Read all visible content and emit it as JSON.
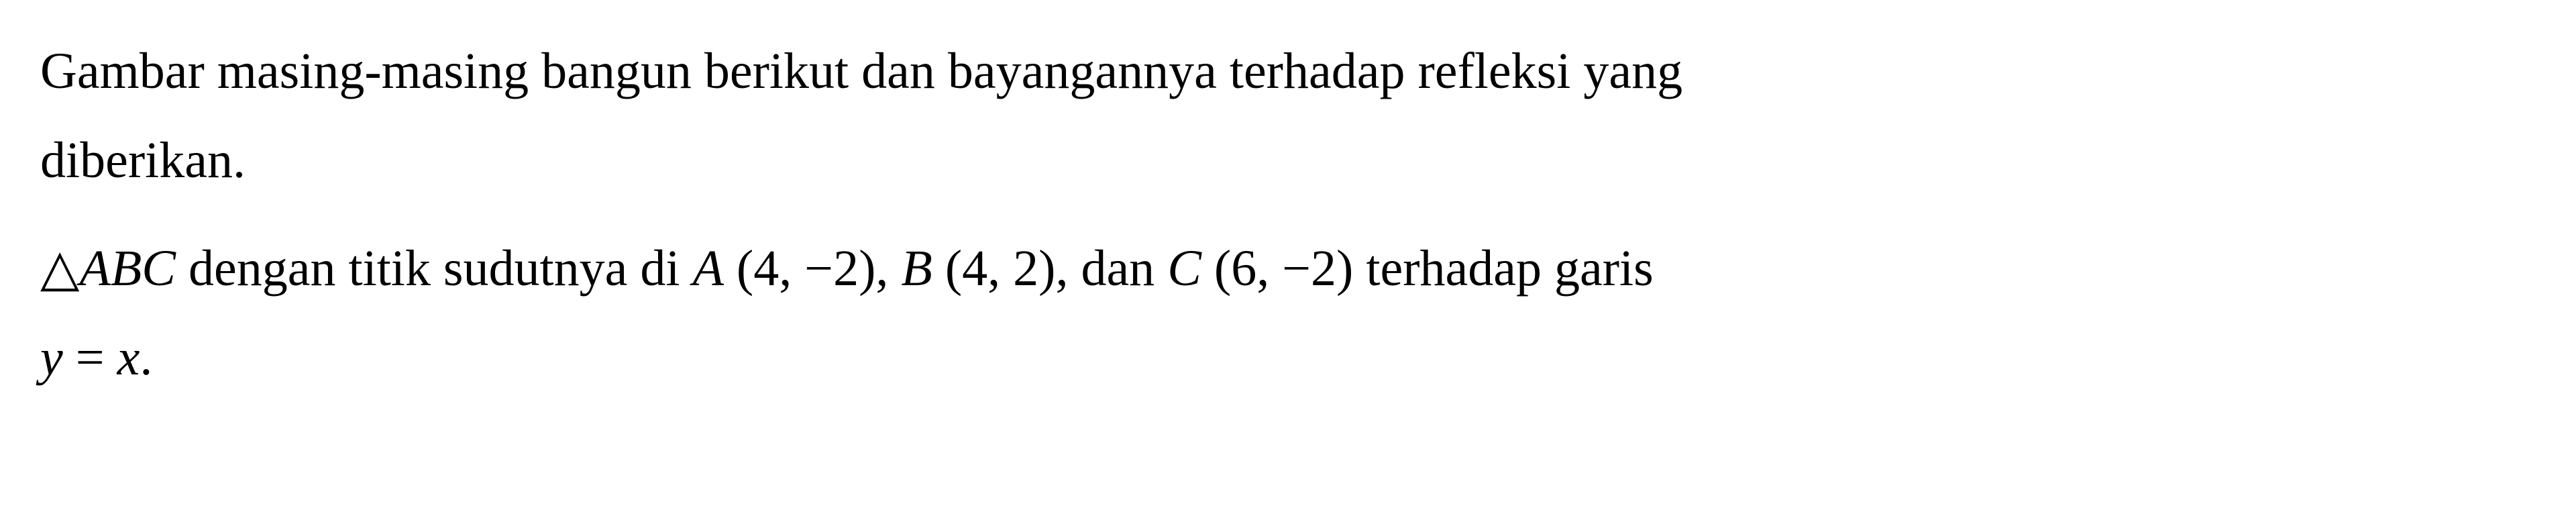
{
  "paragraph1": {
    "line1": "Gambar masing-masing bangun berikut dan bayangannya terhadap refleksi yang",
    "line2": "diberikan."
  },
  "paragraph2": {
    "triangle": "△",
    "abc": "ABC",
    "text1": " dengan titik sudutnya di ",
    "A": "A",
    "coordA": " (4, −2), ",
    "B": "B",
    "coordB": " (4, 2), dan ",
    "C": "C",
    "coordC": " (6, −2) terhadap garis",
    "y": "y",
    "eq": " = ",
    "x": "x",
    "period": "."
  },
  "styling": {
    "font_family": "Times New Roman",
    "font_size_pt": 76,
    "text_color": "#000000",
    "background_color": "#ffffff",
    "line_height": 1.75
  }
}
